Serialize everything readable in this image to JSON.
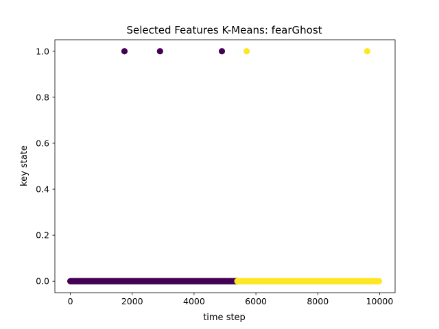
{
  "chart_data": {
    "type": "scatter",
    "title": "Selected Features K-Means: fearGhost",
    "xlabel": "time step",
    "ylabel": "key state",
    "xlim": [
      -500,
      10500
    ],
    "ylim": [
      -0.05,
      1.05
    ],
    "xticks": [
      0,
      2000,
      4000,
      6000,
      8000,
      10000
    ],
    "xtick_labels": [
      "0",
      "2000",
      "4000",
      "6000",
      "8000",
      "10000"
    ],
    "yticks": [
      0.0,
      0.2,
      0.4,
      0.6,
      0.8,
      1.0
    ],
    "ytick_labels": [
      "0.0",
      "0.2",
      "0.4",
      "0.6",
      "0.8",
      "1.0"
    ],
    "grid": false,
    "legend": "none",
    "colors": {
      "cluster_0": "#440154",
      "cluster_1": "#fde725"
    },
    "series": [
      {
        "points": [
          {
            "x": 1750,
            "y": 1.0
          },
          {
            "x": 2900,
            "y": 1.0
          },
          {
            "x": 4900,
            "y": 1.0
          }
        ],
        "ranges": [
          {
            "x_start": 0,
            "x_end": 5400,
            "y": 0.0
          }
        ],
        "color": "#440154"
      },
      {
        "points": [
          {
            "x": 5700,
            "y": 1.0
          },
          {
            "x": 9600,
            "y": 1.0
          }
        ],
        "ranges": [
          {
            "x_start": 5400,
            "x_end": 9980,
            "y": 0.0
          }
        ],
        "color": "#fde725"
      }
    ]
  }
}
